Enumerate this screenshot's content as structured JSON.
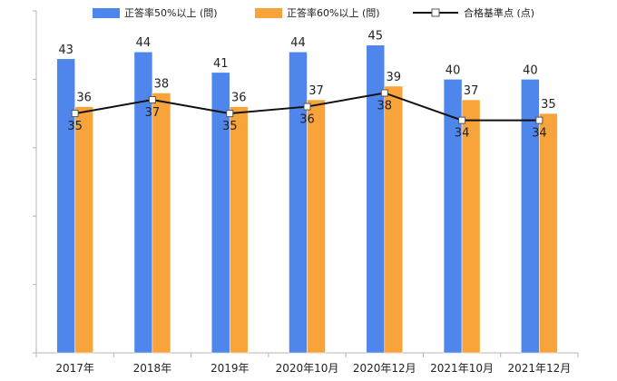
{
  "chart_data": {
    "type": "bar",
    "categories": [
      "2017年",
      "2018年",
      "2019年",
      "2020年10月",
      "2020年12月",
      "2021年10月",
      "2021年12月"
    ],
    "series": [
      {
        "name": "正答率50%以上 (問)",
        "type": "bar",
        "color": "#4f86ec",
        "values": [
          43,
          44,
          41,
          44,
          45,
          40,
          40
        ]
      },
      {
        "name": "正答率60%以上 (問)",
        "type": "bar",
        "color": "#f9a43a",
        "values": [
          36,
          38,
          36,
          37,
          39,
          37,
          35
        ]
      },
      {
        "name": "合格基準点 (点)",
        "type": "line",
        "color": "#111111",
        "values": [
          35,
          37,
          35,
          36,
          38,
          34,
          34
        ]
      }
    ],
    "ylim": [
      0,
      50
    ],
    "grid": false,
    "legend_position": "top"
  }
}
